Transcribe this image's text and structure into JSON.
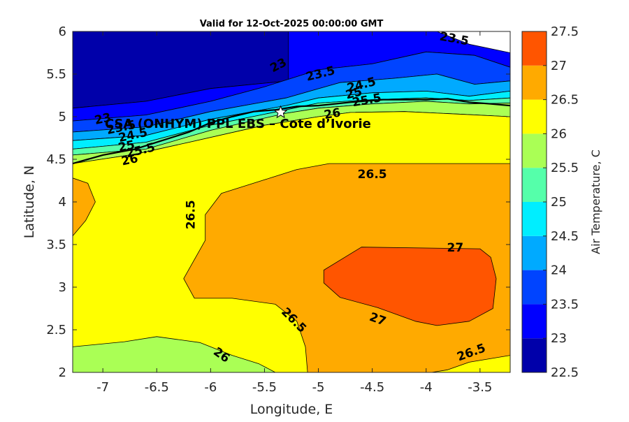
{
  "chart_data": {
    "type": "heatmap",
    "subtype": "filled-contour",
    "title": "Valid for 12-Oct-2025 00:00:00 GMT",
    "xlabel": "Longitude, E",
    "ylabel": "Latitude, N",
    "xlim": [
      -7.28,
      -3.22
    ],
    "ylim": [
      2,
      6
    ],
    "xticks": [
      -7,
      -6.5,
      -6,
      -5.5,
      -5,
      -4.5,
      -4,
      -3.5
    ],
    "yticks": [
      2,
      2.5,
      3,
      3.5,
      4,
      4.5,
      5,
      5.5,
      6
    ],
    "grid": false,
    "colorbar": {
      "label": "Air Temperature, C",
      "levels": [
        22.5,
        23,
        23.5,
        24,
        24.5,
        25,
        25.5,
        26,
        26.5,
        27,
        27.5
      ],
      "tick_labels": [
        "22.5",
        "23",
        "23.5",
        "24",
        "24.5",
        "25",
        "25.5",
        "26",
        "26.5",
        "27",
        "27.5"
      ],
      "colors": [
        "#0000aa",
        "#0000ff",
        "#0044ff",
        "#00aaff",
        "#00eeff",
        "#55ffaa",
        "#aaff55",
        "#ffff00",
        "#ffaa00",
        "#ff5500",
        "#ff0000"
      ]
    },
    "regions": [
      {
        "level": 22.5,
        "points": [
          [
            -7.28,
            6
          ],
          [
            -5.28,
            6
          ],
          [
            -5.28,
            5.42
          ],
          [
            -6.0,
            5.33
          ],
          [
            -6.6,
            5.18
          ],
          [
            -7.28,
            5.1
          ]
        ]
      },
      {
        "level": 23,
        "points": [
          [
            -7.28,
            5.1
          ],
          [
            -6.6,
            5.18
          ],
          [
            -6.0,
            5.33
          ],
          [
            -5.28,
            5.42
          ],
          [
            -5.28,
            6
          ],
          [
            -4.8,
            6
          ],
          [
            -3.9,
            6
          ],
          [
            -3.6,
            5.85
          ],
          [
            -3.22,
            5.75
          ],
          [
            -3.22,
            5.58
          ],
          [
            -3.55,
            5.72
          ],
          [
            -4.0,
            5.76
          ],
          [
            -4.5,
            5.62
          ],
          [
            -5.0,
            5.55
          ],
          [
            -5.5,
            5.35
          ],
          [
            -6.0,
            5.18
          ],
          [
            -6.6,
            5.02
          ],
          [
            -7.28,
            4.95
          ]
        ]
      },
      {
        "level": 23.5,
        "points": [
          [
            -7.28,
            4.95
          ],
          [
            -6.6,
            5.02
          ],
          [
            -6.0,
            5.18
          ],
          [
            -5.5,
            5.35
          ],
          [
            -5.0,
            5.55
          ],
          [
            -4.5,
            5.62
          ],
          [
            -4.0,
            5.76
          ],
          [
            -3.55,
            5.72
          ],
          [
            -3.22,
            5.58
          ],
          [
            -3.22,
            5.42
          ],
          [
            -3.55,
            5.38
          ],
          [
            -3.9,
            5.5
          ],
          [
            -4.3,
            5.45
          ],
          [
            -4.8,
            5.4
          ],
          [
            -5.3,
            5.22
          ],
          [
            -6.0,
            5.06
          ],
          [
            -6.6,
            4.88
          ],
          [
            -7.28,
            4.82
          ]
        ]
      },
      {
        "level": 24,
        "points": [
          [
            -7.28,
            4.82
          ],
          [
            -6.6,
            4.88
          ],
          [
            -6.0,
            5.06
          ],
          [
            -5.3,
            5.22
          ],
          [
            -4.8,
            5.4
          ],
          [
            -4.3,
            5.45
          ],
          [
            -3.9,
            5.5
          ],
          [
            -3.55,
            5.38
          ],
          [
            -3.22,
            5.42
          ],
          [
            -3.22,
            5.3
          ],
          [
            -3.6,
            5.24
          ],
          [
            -4.0,
            5.3
          ],
          [
            -4.5,
            5.28
          ],
          [
            -5.0,
            5.22
          ],
          [
            -5.3,
            5.13
          ],
          [
            -6.0,
            4.97
          ],
          [
            -6.6,
            4.78
          ],
          [
            -7.28,
            4.72
          ]
        ]
      },
      {
        "level": 24.5,
        "points": [
          [
            -7.28,
            4.72
          ],
          [
            -6.6,
            4.78
          ],
          [
            -6.0,
            4.97
          ],
          [
            -5.3,
            5.13
          ],
          [
            -5.0,
            5.22
          ],
          [
            -4.5,
            5.28
          ],
          [
            -4.0,
            5.3
          ],
          [
            -3.6,
            5.24
          ],
          [
            -3.22,
            5.3
          ],
          [
            -3.22,
            5.22
          ],
          [
            -3.6,
            5.19
          ],
          [
            -4.0,
            5.22
          ],
          [
            -4.5,
            5.2
          ],
          [
            -5.0,
            5.16
          ],
          [
            -5.3,
            5.08
          ],
          [
            -6.0,
            4.9
          ],
          [
            -6.6,
            4.7
          ],
          [
            -7.28,
            4.62
          ]
        ]
      },
      {
        "level": 25,
        "points": [
          [
            -7.28,
            4.62
          ],
          [
            -6.6,
            4.7
          ],
          [
            -6.0,
            4.9
          ],
          [
            -5.3,
            5.08
          ],
          [
            -5.0,
            5.16
          ],
          [
            -4.5,
            5.2
          ],
          [
            -4.0,
            5.22
          ],
          [
            -3.6,
            5.19
          ],
          [
            -3.22,
            5.22
          ],
          [
            -3.22,
            5.16
          ],
          [
            -3.6,
            5.15
          ],
          [
            -4.0,
            5.18
          ],
          [
            -4.5,
            5.15
          ],
          [
            -5.0,
            5.1
          ],
          [
            -5.3,
            5.04
          ],
          [
            -6.0,
            4.84
          ],
          [
            -6.6,
            4.62
          ],
          [
            -7.28,
            4.55
          ]
        ]
      },
      {
        "level": 25.5,
        "points": [
          [
            -7.28,
            4.55
          ],
          [
            -6.6,
            4.62
          ],
          [
            -6.0,
            4.84
          ],
          [
            -5.3,
            5.04
          ],
          [
            -5.0,
            5.1
          ],
          [
            -4.5,
            5.15
          ],
          [
            -4.0,
            5.18
          ],
          [
            -3.6,
            5.15
          ],
          [
            -3.22,
            5.16
          ],
          [
            -3.22,
            5.0
          ],
          [
            -3.7,
            5.03
          ],
          [
            -4.2,
            5.06
          ],
          [
            -4.7,
            5.05
          ],
          [
            -5.0,
            5.0
          ],
          [
            -5.5,
            4.9
          ],
          [
            -6.2,
            4.7
          ],
          [
            -6.7,
            4.56
          ],
          [
            -7.28,
            4.45
          ]
        ]
      },
      {
        "level": 26,
        "points": [
          [
            -7.28,
            4.45
          ],
          [
            -6.7,
            4.56
          ],
          [
            -6.2,
            4.7
          ],
          [
            -5.5,
            4.9
          ],
          [
            -5.0,
            5.0
          ],
          [
            -4.7,
            5.05
          ],
          [
            -4.2,
            5.06
          ],
          [
            -3.7,
            5.03
          ],
          [
            -3.22,
            5.0
          ],
          [
            -3.22,
            2
          ],
          [
            -7.28,
            2
          ]
        ]
      },
      {
        "level": 25.5,
        "points": [
          [
            -7.28,
            2
          ],
          [
            -7.28,
            2.3
          ],
          [
            -6.8,
            2.36
          ],
          [
            -6.5,
            2.42
          ],
          [
            -6.1,
            2.35
          ],
          [
            -5.8,
            2.2
          ],
          [
            -5.55,
            2.1
          ],
          [
            -5.4,
            2
          ]
        ]
      },
      {
        "level": 26.5,
        "points": [
          [
            -6.15,
            2.87
          ],
          [
            -6.25,
            3.1
          ],
          [
            -6.05,
            3.55
          ],
          [
            -6.05,
            3.85
          ],
          [
            -5.9,
            4.1
          ],
          [
            -5.5,
            4.26
          ],
          [
            -5.2,
            4.38
          ],
          [
            -4.9,
            4.45
          ],
          [
            -3.22,
            4.45
          ],
          [
            -3.22,
            2.2
          ],
          [
            -3.6,
            2.12
          ],
          [
            -3.8,
            2.03
          ],
          [
            -3.95,
            2
          ],
          [
            -5.1,
            2
          ],
          [
            -5.12,
            2.3
          ],
          [
            -5.2,
            2.6
          ],
          [
            -5.4,
            2.8
          ],
          [
            -5.8,
            2.87
          ]
        ]
      },
      {
        "level": 26.5,
        "points": [
          [
            -7.28,
            3.6
          ],
          [
            -7.16,
            3.78
          ],
          [
            -7.07,
            4.0
          ],
          [
            -7.14,
            4.22
          ],
          [
            -7.28,
            4.28
          ]
        ]
      },
      {
        "level": 27,
        "points": [
          [
            -4.95,
            3.2
          ],
          [
            -4.95,
            3.05
          ],
          [
            -4.8,
            2.88
          ],
          [
            -4.45,
            2.76
          ],
          [
            -4.1,
            2.6
          ],
          [
            -3.9,
            2.55
          ],
          [
            -3.6,
            2.6
          ],
          [
            -3.38,
            2.75
          ],
          [
            -3.35,
            3.1
          ],
          [
            -3.4,
            3.35
          ],
          [
            -3.5,
            3.45
          ],
          [
            -4.6,
            3.47
          ]
        ]
      }
    ],
    "contour_labels": [
      {
        "text": "23.5",
        "lon": -3.74,
        "lat": 5.91,
        "rot": 10
      },
      {
        "text": "23",
        "lon": -5.37,
        "lat": 5.6,
        "rot": -28
      },
      {
        "text": "23.5",
        "lon": -4.98,
        "lat": 5.5,
        "rot": -14
      },
      {
        "text": "24.5",
        "lon": -4.6,
        "lat": 5.37,
        "rot": -14
      },
      {
        "text": "25",
        "lon": -4.67,
        "lat": 5.27,
        "rot": -14
      },
      {
        "text": "25.5",
        "lon": -4.55,
        "lat": 5.19,
        "rot": -10
      },
      {
        "text": "26",
        "lon": -4.87,
        "lat": 5.03,
        "rot": -10
      },
      {
        "text": "23",
        "lon": -7.0,
        "lat": 4.97,
        "rot": -12
      },
      {
        "text": "23.5",
        "lon": -6.83,
        "lat": 4.87,
        "rot": -12
      },
      {
        "text": "24.5",
        "lon": -6.72,
        "lat": 4.78,
        "rot": -12
      },
      {
        "text": "25",
        "lon": -6.78,
        "lat": 4.65,
        "rot": -12
      },
      {
        "text": "25.5",
        "lon": -6.65,
        "lat": 4.6,
        "rot": -14
      },
      {
        "text": "26",
        "lon": -6.75,
        "lat": 4.49,
        "rot": -12
      },
      {
        "text": "26.5",
        "lon": -4.5,
        "lat": 4.32,
        "rot": 0
      },
      {
        "text": "26.5",
        "lon": -6.18,
        "lat": 3.85,
        "rot": -90
      },
      {
        "text": "27",
        "lon": -3.73,
        "lat": 3.46,
        "rot": 0
      },
      {
        "text": "27",
        "lon": -4.45,
        "lat": 2.62,
        "rot": 20
      },
      {
        "text": "26.5",
        "lon": -5.23,
        "lat": 2.61,
        "rot": 45
      },
      {
        "text": "26",
        "lon": -5.9,
        "lat": 2.2,
        "rot": 35
      },
      {
        "text": "26.5",
        "lon": -3.58,
        "lat": 2.23,
        "rot": -20
      }
    ],
    "coastline": [
      [
        -7.28,
        4.45
      ],
      [
        -7.0,
        4.55
      ],
      [
        -6.7,
        4.62
      ],
      [
        -6.5,
        4.7
      ],
      [
        -6.2,
        4.82
      ],
      [
        -6.0,
        4.93
      ],
      [
        -5.8,
        5.0
      ],
      [
        -5.6,
        5.06
      ],
      [
        -5.4,
        5.08
      ],
      [
        -5.2,
        5.12
      ],
      [
        -5.0,
        5.13
      ],
      [
        -4.7,
        5.17
      ],
      [
        -4.4,
        5.2
      ],
      [
        -4.2,
        5.2
      ],
      [
        -4.0,
        5.2
      ],
      [
        -3.8,
        5.21
      ],
      [
        -3.6,
        5.17
      ],
      [
        -3.4,
        5.15
      ],
      [
        -3.22,
        5.13
      ]
    ],
    "site": {
      "name": "CSA (ONHYM) PPL EBS  – Cote d’Ivorie",
      "lon": -5.35,
      "lat": 5.05
    }
  }
}
